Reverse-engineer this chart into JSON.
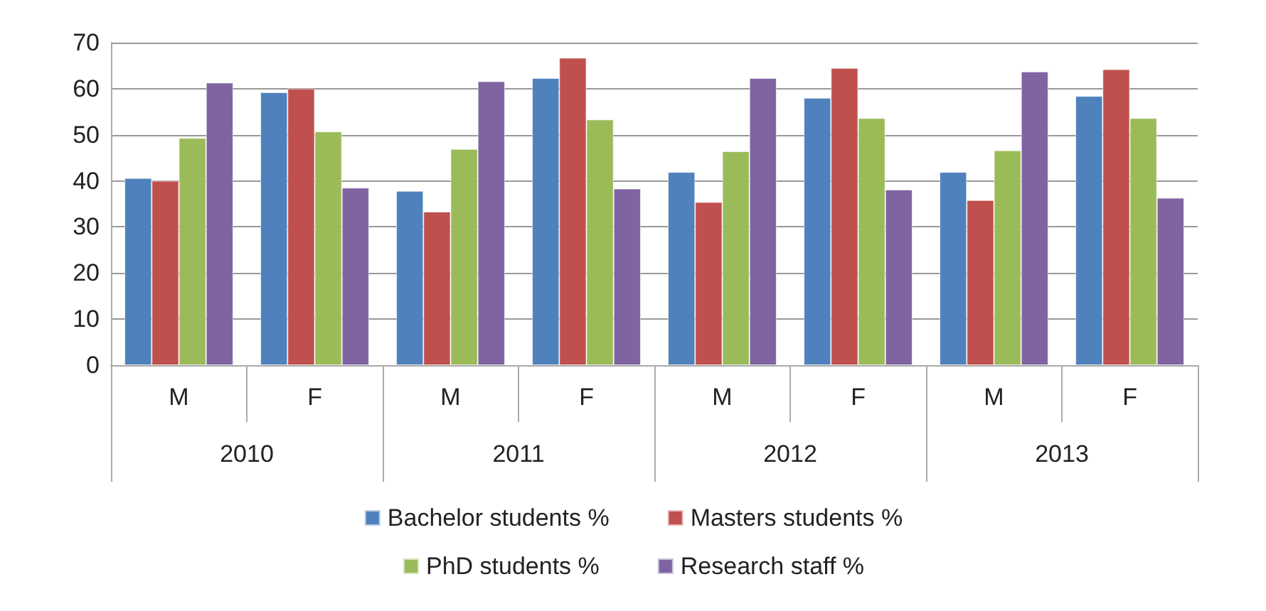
{
  "chart_data": {
    "type": "bar",
    "categories": [
      "M",
      "F",
      "M",
      "F",
      "M",
      "F",
      "M",
      "F"
    ],
    "annotations": [
      "2010",
      "2011",
      "2012",
      "2013"
    ],
    "series": [
      {
        "name": "Bachelor students %",
        "color": "#4f81bd",
        "values": [
          40.6,
          59.2,
          37.8,
          62.3,
          41.9,
          58.0,
          41.9,
          58.4
        ]
      },
      {
        "name": "Masters students %",
        "color": "#c0504d",
        "values": [
          40.0,
          60.0,
          33.3,
          66.7,
          35.4,
          64.5,
          35.8,
          64.2
        ]
      },
      {
        "name": "PhD students %",
        "color": "#9bbb59",
        "values": [
          49.3,
          50.7,
          46.9,
          53.3,
          46.4,
          53.6,
          46.6,
          53.6
        ]
      },
      {
        "name": "Research staff %",
        "color": "#8064a2",
        "values": [
          61.3,
          38.5,
          61.6,
          38.3,
          62.3,
          38.1,
          63.7,
          36.3
        ]
      }
    ],
    "ylim": [
      0,
      70
    ],
    "yticks": [
      0,
      10,
      20,
      30,
      40,
      50,
      60,
      70
    ],
    "grid": "y",
    "legend": "bottom"
  }
}
